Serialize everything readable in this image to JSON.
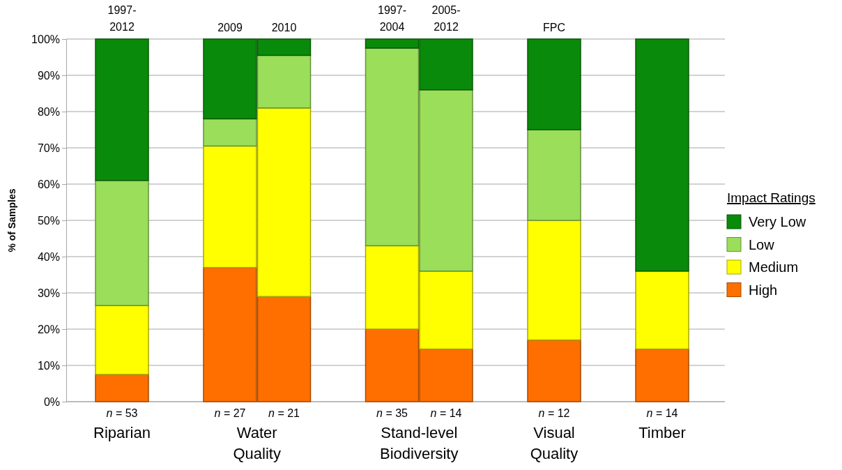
{
  "chart_data": {
    "type": "bar",
    "stacked": true,
    "categories": [
      "n = 53",
      "n = 27",
      "n = 21",
      "n = 35",
      "n = 14",
      "n = 12",
      "n = 14"
    ],
    "series": [
      {
        "name": "High",
        "color": "#ff6f00",
        "values": [
          7.5,
          37,
          29,
          20,
          14.5,
          17,
          14.5
        ]
      },
      {
        "name": "Medium",
        "color": "#ffff00",
        "values": [
          19,
          33.5,
          52,
          23,
          21.5,
          33,
          21.5
        ]
      },
      {
        "name": "Low",
        "color": "#9ade5a",
        "values": [
          34.5,
          7.5,
          14.5,
          54.5,
          50,
          25,
          0
        ]
      },
      {
        "name": "Very Low",
        "color": "#0a8a0a",
        "values": [
          39,
          22,
          4.5,
          2.5,
          14,
          25,
          64
        ]
      }
    ],
    "ylabel": "% of Samples",
    "legend_title": "Impact Ratings",
    "legend": "right",
    "grid": "y",
    "ylim": [
      0,
      100
    ],
    "yticks": [
      {
        "value": 0,
        "label": "0%"
      },
      {
        "value": 10,
        "label": "10%"
      },
      {
        "value": 20,
        "label": "20%"
      },
      {
        "value": 30,
        "label": "30%"
      },
      {
        "value": 40,
        "label": "40%"
      },
      {
        "value": 50,
        "label": "50%"
      },
      {
        "value": 60,
        "label": "60%"
      },
      {
        "value": 70,
        "label": "70%"
      },
      {
        "value": 80,
        "label": "80%"
      },
      {
        "value": 90,
        "label": "90%"
      },
      {
        "value": 100,
        "label": "100%"
      }
    ],
    "annotations": [
      "1997-2012",
      "2009",
      "2010",
      "1997-2004",
      "2005-2012",
      "FPC",
      "Riparian",
      "Water Quality",
      "Stand-level Biodiversity",
      "Visual Quality",
      "Timber"
    ]
  }
}
